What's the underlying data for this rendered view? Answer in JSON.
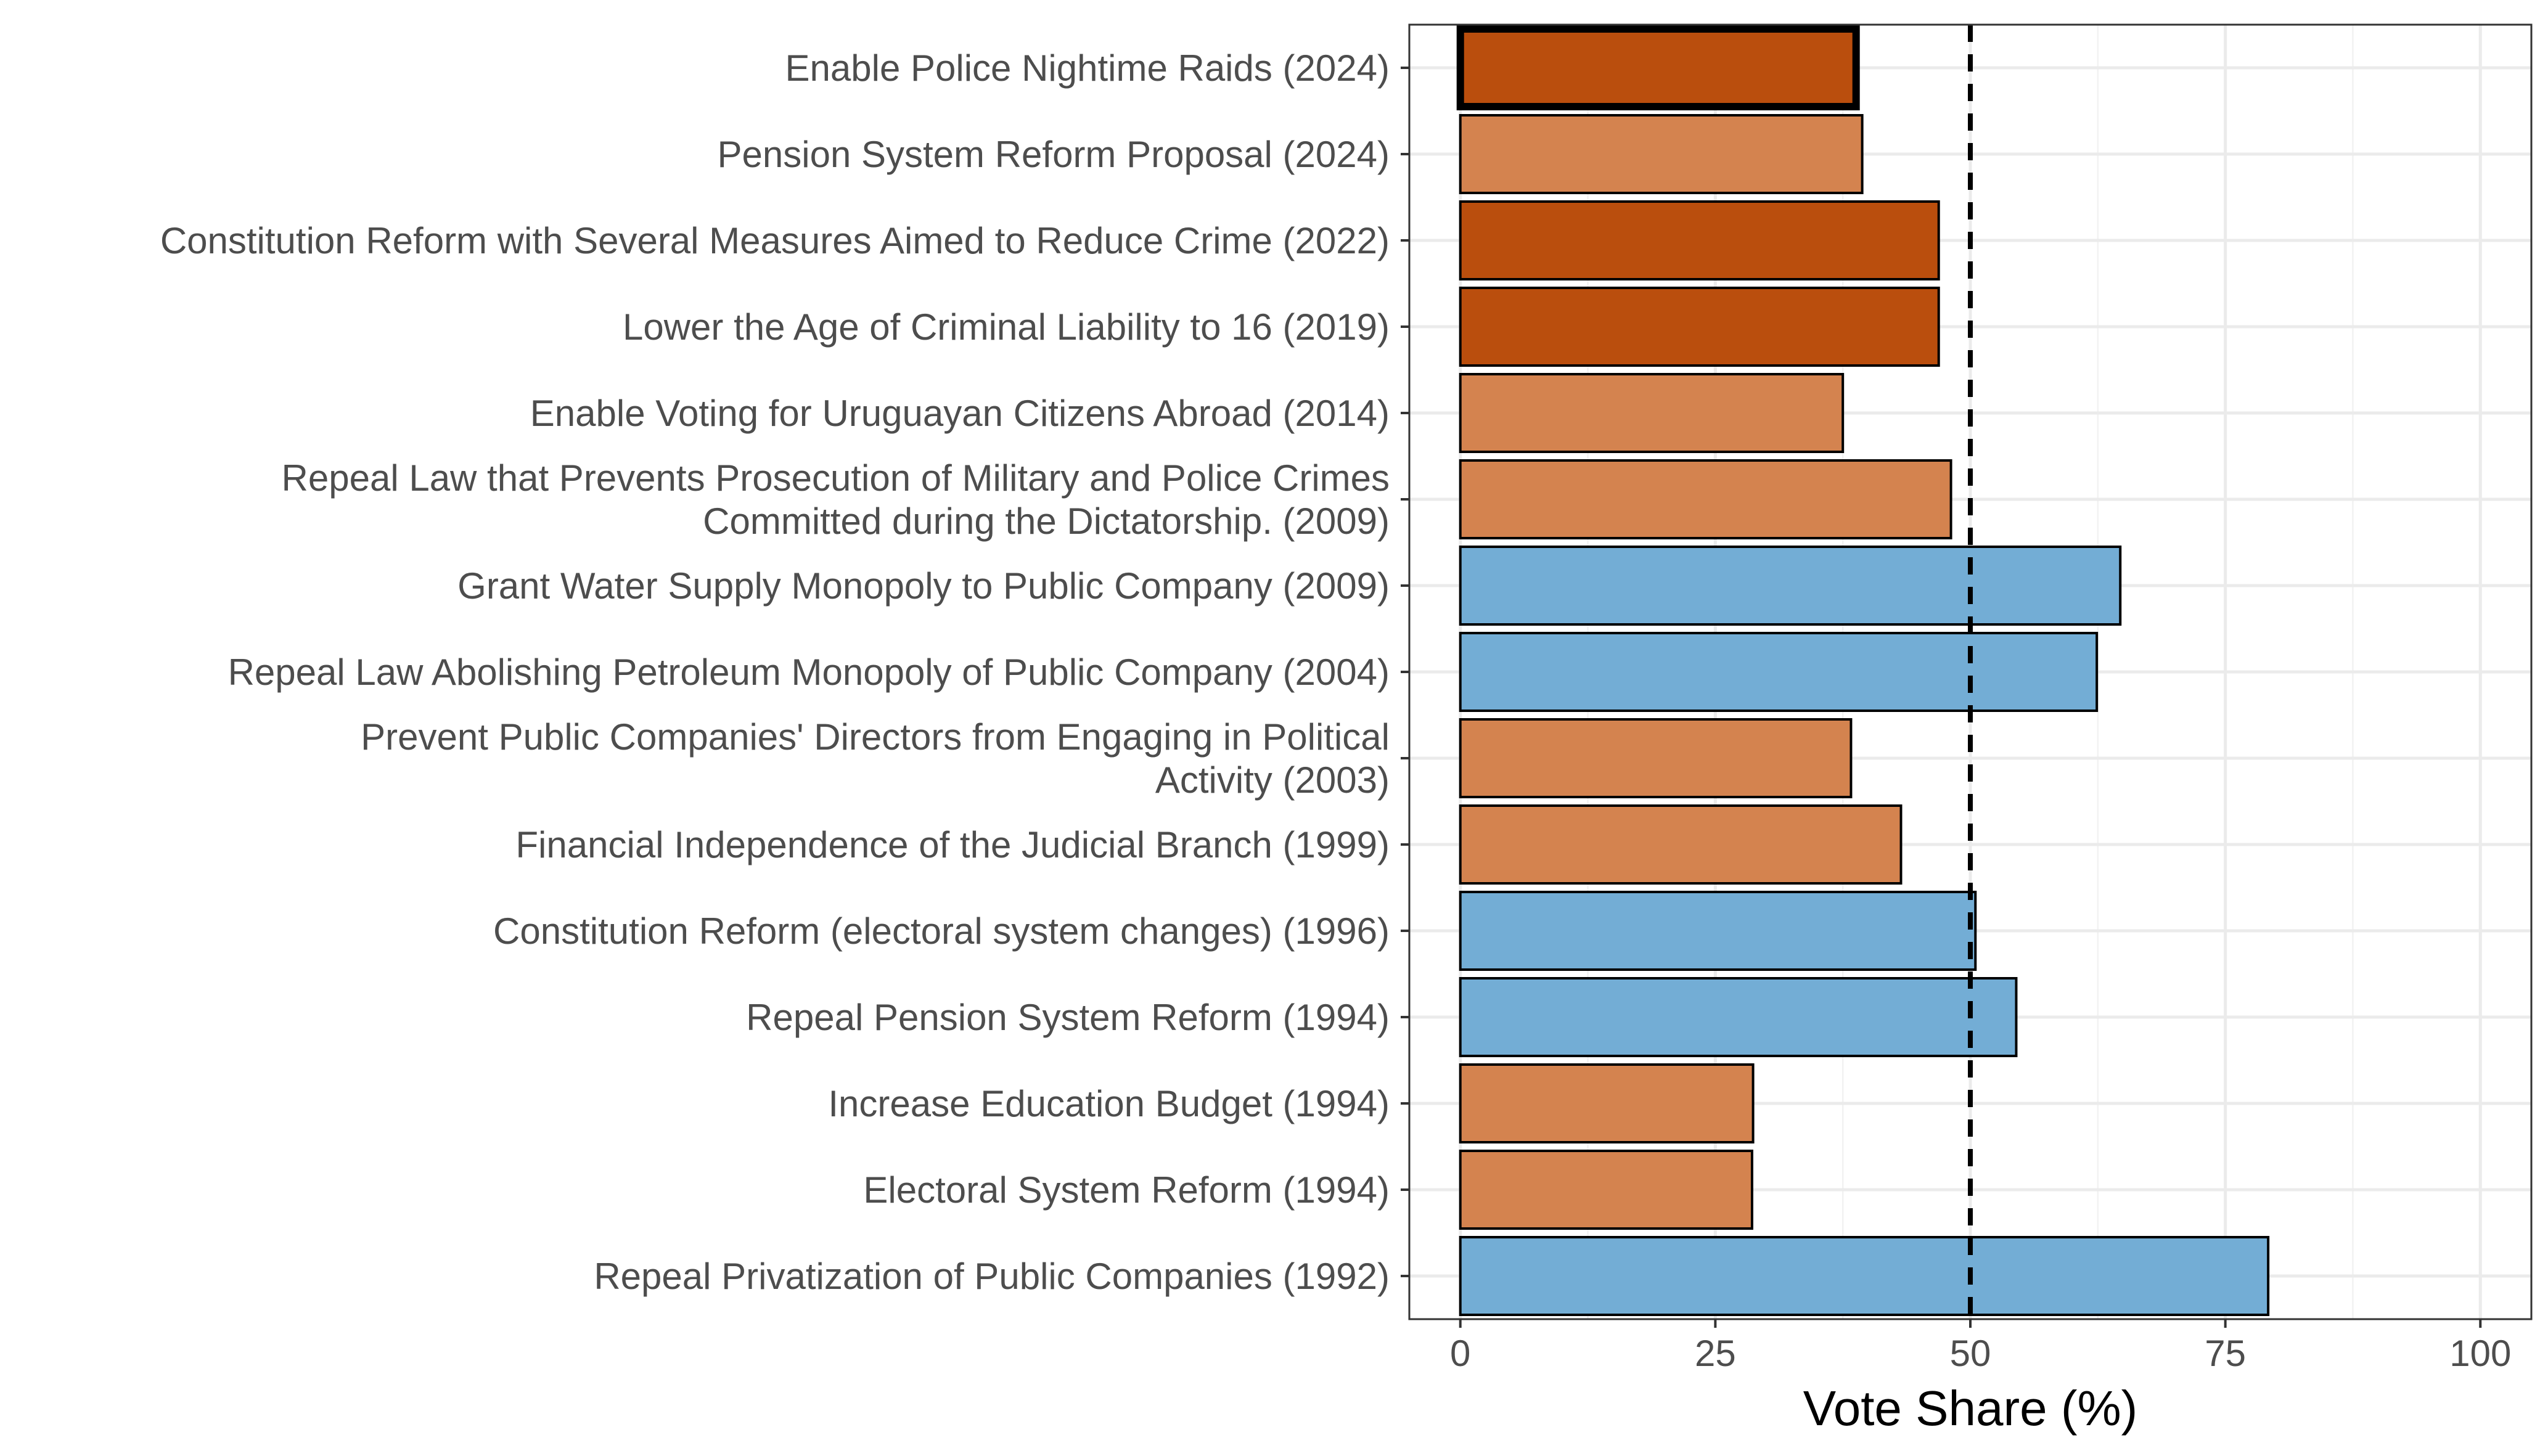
{
  "chart_data": {
    "type": "bar",
    "orientation": "horizontal",
    "title": "",
    "xlabel": "Vote Share (%)",
    "ylabel": "",
    "xlim": [
      -5,
      105
    ],
    "x_ticks": [
      0,
      25,
      50,
      75,
      100
    ],
    "reference_line": {
      "x": 50,
      "style": "dashed"
    },
    "grid": true,
    "legend": "none",
    "colors": {
      "dark_orange": "#BA4E0D",
      "light_orange": "#D4834F",
      "blue": "#73ADD5"
    },
    "bars": [
      {
        "label": "Enable Police Nightime Raids (2024)",
        "value": 38.8,
        "color": "dark_orange",
        "highlight": true
      },
      {
        "label": "Pension System Reform Proposal (2024)",
        "value": 39.4,
        "color": "light_orange"
      },
      {
        "label": "Constitution Reform with Several Measures Aimed to Reduce Crime (2022)",
        "value": 46.9,
        "color": "dark_orange"
      },
      {
        "label": "Lower the Age of Criminal Liability to 16 (2019)",
        "value": 46.9,
        "color": "dark_orange"
      },
      {
        "label": "Enable Voting for Uruguayan Citizens Abroad (2014)",
        "value": 37.5,
        "color": "light_orange"
      },
      {
        "label": "Repeal Law that Prevents Prosecution of Military and Police Crimes Committed during the Dictatorship. (2009)",
        "lines": [
          "Repeal Law that Prevents Prosecution of Military and Police Crimes",
          "Committed during the Dictatorship. (2009)"
        ],
        "value": 48.1,
        "color": "light_orange"
      },
      {
        "label": "Grant Water Supply Monopoly to Public Company (2009)",
        "value": 64.7,
        "color": "blue"
      },
      {
        "label": "Repeal Law Abolishing Petroleum Monopoly of Public Company (2004)",
        "value": 62.4,
        "color": "blue"
      },
      {
        "label": "Prevent Public Companies' Directors from Engaging in Political Activity (2003)",
        "lines": [
          "Prevent Public Companies' Directors from Engaging in Political",
          "Activity (2003)"
        ],
        "value": 38.3,
        "color": "light_orange"
      },
      {
        "label": "Financial Independence of the Judicial Branch (1999)",
        "value": 43.2,
        "color": "light_orange"
      },
      {
        "label": "Constitution Reform (electoral system changes) (1996)",
        "value": 50.5,
        "color": "blue"
      },
      {
        "label": "Repeal Pension System Reform (1994)",
        "value": 54.5,
        "color": "blue"
      },
      {
        "label": "Increase Education Budget (1994)",
        "value": 28.7,
        "color": "light_orange"
      },
      {
        "label": "Electoral System Reform (1994)",
        "value": 28.6,
        "color": "light_orange"
      },
      {
        "label": "Repeal Privatization of Public Companies (1992)",
        "value": 79.2,
        "color": "blue"
      }
    ]
  }
}
